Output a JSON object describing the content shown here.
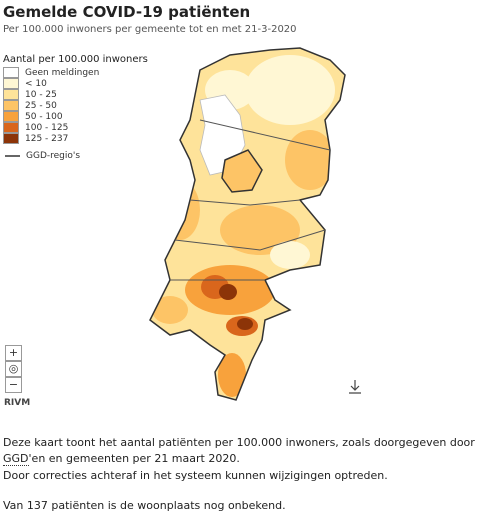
{
  "header": {
    "title": "Gemelde COVID-19 patiënten",
    "subtitle": "Per 100.000 inwoners per gemeente tot en met 21-3-2020"
  },
  "legend": {
    "title": "Aantal per 100.000 inwoners",
    "items": [
      {
        "label": "Geen meldingen",
        "color": "#ffffff"
      },
      {
        "label": "< 10",
        "color": "#fff7d4"
      },
      {
        "label": "10 - 25",
        "color": "#fee39a"
      },
      {
        "label": "25 - 50",
        "color": "#fdc466"
      },
      {
        "label": "50 - 100",
        "color": "#f8a23c"
      },
      {
        "label": "100 - 125",
        "color": "#d9661c"
      },
      {
        "label": "125 - 237",
        "color": "#8c3408"
      }
    ],
    "border_label": "GGD-regio's"
  },
  "controls": {
    "zoom_in": "+",
    "reset": "◎",
    "zoom_out": "−"
  },
  "source": "RIVM",
  "text": {
    "paragraph_1": {
      "before": "Deze kaart toont het aantal patiënten per 100.000 inwoners, zoals doorgegeven door ",
      "abbr": "GGD",
      "after": "'en en gemeenten per 21 maart 2020."
    },
    "paragraph_2": "Door correcties achteraf in het systeem kunnen wijzigingen optreden.",
    "paragraph_3": "Van 137 patiënten is de woonplaats nog onbekend."
  }
}
